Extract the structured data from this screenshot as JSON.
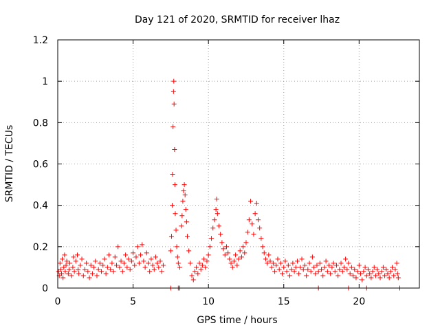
{
  "chart_data": {
    "type": "scatter",
    "title": "Day 121 of 2020, SRMTID for receiver lhaz",
    "xlabel": "GPS time / hours",
    "ylabel": "SRMTID / TECUs",
    "xlim": [
      0,
      24
    ],
    "ylim": [
      0,
      1.2
    ],
    "xticks": [
      0,
      5,
      10,
      15,
      20
    ],
    "xtick_labels": [
      "0",
      "5",
      "10",
      "15",
      "20"
    ],
    "yticks": [
      0,
      0.2,
      0.4,
      0.6,
      0.8,
      1.0,
      1.2
    ],
    "ytick_labels": [
      "0",
      "0.2",
      "0.4",
      "0.6",
      "0.8",
      "1",
      "1.2"
    ],
    "grid": true,
    "marker": "+",
    "color": "#ff0000",
    "series": [
      {
        "name": "SRMTID",
        "points": [
          [
            0.05,
            0.08
          ],
          [
            0.1,
            0.06
          ],
          [
            0.15,
            0.12
          ],
          [
            0.2,
            0.09
          ],
          [
            0.25,
            0.07
          ],
          [
            0.3,
            0.14
          ],
          [
            0.35,
            0.05
          ],
          [
            0.4,
            0.1
          ],
          [
            0.45,
            0.16
          ],
          [
            0.5,
            0.08
          ],
          [
            0.55,
            0.11
          ],
          [
            0.6,
            0.13
          ],
          [
            0.7,
            0.07
          ],
          [
            0.75,
            0.09
          ],
          [
            0.8,
            0.12
          ],
          [
            0.9,
            0.06
          ],
          [
            1.0,
            0.1
          ],
          [
            1.05,
            0.15
          ],
          [
            1.1,
            0.08
          ],
          [
            1.2,
            0.13
          ],
          [
            1.3,
            0.16
          ],
          [
            1.35,
            0.09
          ],
          [
            1.4,
            0.07
          ],
          [
            1.5,
            0.11
          ],
          [
            1.6,
            0.14
          ],
          [
            1.7,
            0.06
          ],
          [
            1.8,
            0.09
          ],
          [
            1.9,
            0.12
          ],
          [
            2.0,
            0.08
          ],
          [
            2.1,
            0.05
          ],
          [
            2.2,
            0.11
          ],
          [
            2.3,
            0.07
          ],
          [
            2.4,
            0.1
          ],
          [
            2.5,
            0.13
          ],
          [
            2.6,
            0.06
          ],
          [
            2.7,
            0.09
          ],
          [
            2.8,
            0.12
          ],
          [
            2.9,
            0.08
          ],
          [
            3.0,
            0.11
          ],
          [
            3.1,
            0.14
          ],
          [
            3.2,
            0.07
          ],
          [
            3.3,
            0.1
          ],
          [
            3.4,
            0.16
          ],
          [
            3.5,
            0.09
          ],
          [
            3.6,
            0.12
          ],
          [
            3.7,
            0.08
          ],
          [
            3.8,
            0.15
          ],
          [
            3.9,
            0.11
          ],
          [
            4.0,
            0.2
          ],
          [
            4.1,
            0.1
          ],
          [
            4.2,
            0.13
          ],
          [
            4.3,
            0.08
          ],
          [
            4.4,
            0.12
          ],
          [
            4.5,
            0.16
          ],
          [
            4.6,
            0.1
          ],
          [
            4.7,
            0.14
          ],
          [
            4.8,
            0.09
          ],
          [
            4.9,
            0.13
          ],
          [
            5.0,
            0.17
          ],
          [
            5.1,
            0.11
          ],
          [
            5.2,
            0.15
          ],
          [
            5.3,
            0.2
          ],
          [
            5.4,
            0.12
          ],
          [
            5.5,
            0.16
          ],
          [
            5.6,
            0.21
          ],
          [
            5.7,
            0.13
          ],
          [
            5.8,
            0.1
          ],
          [
            5.9,
            0.17
          ],
          [
            6.0,
            0.12
          ],
          [
            6.1,
            0.08
          ],
          [
            6.2,
            0.14
          ],
          [
            6.3,
            0.11
          ],
          [
            6.4,
            0.09
          ],
          [
            6.5,
            0.15
          ],
          [
            6.6,
            0.12
          ],
          [
            6.7,
            0.1
          ],
          [
            6.8,
            0.13
          ],
          [
            6.9,
            0.08
          ],
          [
            7.0,
            0.11
          ],
          [
            7.5,
            0.18
          ],
          [
            7.55,
            0.25
          ],
          [
            7.6,
            0.4
          ],
          [
            7.62,
            0.55
          ],
          [
            7.65,
            0.78
          ],
          [
            7.68,
            0.95
          ],
          [
            7.7,
            1.0
          ],
          [
            7.72,
            0.89
          ],
          [
            7.75,
            0.67
          ],
          [
            7.78,
            0.5
          ],
          [
            7.8,
            0.36
          ],
          [
            7.85,
            0.28
          ],
          [
            7.9,
            0.2
          ],
          [
            7.95,
            0.15
          ],
          [
            8.0,
            0.12
          ],
          [
            8.1,
            0.1
          ],
          [
            8.2,
            0.3
          ],
          [
            8.25,
            0.35
          ],
          [
            8.3,
            0.42
          ],
          [
            8.35,
            0.47
          ],
          [
            8.4,
            0.5
          ],
          [
            8.45,
            0.45
          ],
          [
            8.5,
            0.38
          ],
          [
            8.55,
            0.32
          ],
          [
            8.6,
            0.25
          ],
          [
            8.7,
            0.18
          ],
          [
            8.8,
            0.12
          ],
          [
            8.9,
            0.06
          ],
          [
            9.0,
            0.04
          ],
          [
            9.1,
            0.08
          ],
          [
            9.2,
            0.1
          ],
          [
            9.3,
            0.07
          ],
          [
            9.4,
            0.12
          ],
          [
            9.5,
            0.09
          ],
          [
            9.6,
            0.11
          ],
          [
            9.7,
            0.14
          ],
          [
            9.8,
            0.1
          ],
          [
            9.9,
            0.13
          ],
          [
            10.0,
            0.16
          ],
          [
            10.1,
            0.2
          ],
          [
            10.2,
            0.24
          ],
          [
            10.3,
            0.29
          ],
          [
            10.4,
            0.33
          ],
          [
            10.5,
            0.38
          ],
          [
            10.55,
            0.43
          ],
          [
            10.6,
            0.36
          ],
          [
            10.7,
            0.3
          ],
          [
            10.8,
            0.26
          ],
          [
            10.9,
            0.22
          ],
          [
            11.0,
            0.19
          ],
          [
            11.1,
            0.16
          ],
          [
            11.2,
            0.2
          ],
          [
            11.3,
            0.17
          ],
          [
            11.4,
            0.14
          ],
          [
            11.5,
            0.12
          ],
          [
            11.6,
            0.1
          ],
          [
            11.7,
            0.13
          ],
          [
            11.8,
            0.16
          ],
          [
            11.9,
            0.11
          ],
          [
            12.0,
            0.14
          ],
          [
            12.1,
            0.18
          ],
          [
            12.2,
            0.15
          ],
          [
            12.3,
            0.2
          ],
          [
            12.4,
            0.17
          ],
          [
            12.5,
            0.22
          ],
          [
            12.6,
            0.27
          ],
          [
            12.7,
            0.33
          ],
          [
            12.8,
            0.42
          ],
          [
            12.9,
            0.31
          ],
          [
            13.0,
            0.26
          ],
          [
            13.1,
            0.36
          ],
          [
            13.2,
            0.41
          ],
          [
            13.3,
            0.33
          ],
          [
            13.4,
            0.29
          ],
          [
            13.5,
            0.24
          ],
          [
            13.6,
            0.2
          ],
          [
            13.7,
            0.17
          ],
          [
            13.8,
            0.14
          ],
          [
            13.9,
            0.12
          ],
          [
            14.0,
            0.16
          ],
          [
            14.1,
            0.13
          ],
          [
            14.2,
            0.1
          ],
          [
            14.3,
            0.12
          ],
          [
            14.4,
            0.08
          ],
          [
            14.5,
            0.11
          ],
          [
            14.6,
            0.14
          ],
          [
            14.7,
            0.09
          ],
          [
            14.8,
            0.12
          ],
          [
            14.9,
            0.07
          ],
          [
            15.0,
            0.1
          ],
          [
            15.1,
            0.13
          ],
          [
            15.2,
            0.08
          ],
          [
            15.3,
            0.11
          ],
          [
            15.4,
            0.06
          ],
          [
            15.5,
            0.09
          ],
          [
            15.6,
            0.12
          ],
          [
            15.7,
            0.08
          ],
          [
            15.8,
            0.1
          ],
          [
            15.9,
            0.13
          ],
          [
            16.0,
            0.07
          ],
          [
            16.1,
            0.1
          ],
          [
            16.2,
            0.14
          ],
          [
            16.3,
            0.09
          ],
          [
            16.4,
            0.11
          ],
          [
            16.5,
            0.06
          ],
          [
            16.6,
            0.09
          ],
          [
            16.7,
            0.12
          ],
          [
            16.8,
            0.08
          ],
          [
            16.9,
            0.15
          ],
          [
            17.0,
            0.1
          ],
          [
            17.1,
            0.07
          ],
          [
            17.2,
            0.11
          ],
          [
            17.3,
            0.08
          ],
          [
            17.4,
            0.12
          ],
          [
            17.5,
            0.09
          ],
          [
            17.6,
            0.06
          ],
          [
            17.7,
            0.1
          ],
          [
            17.8,
            0.13
          ],
          [
            17.9,
            0.08
          ],
          [
            18.0,
            0.11
          ],
          [
            18.1,
            0.07
          ],
          [
            18.2,
            0.1
          ],
          [
            18.3,
            0.12
          ],
          [
            18.4,
            0.08
          ],
          [
            18.5,
            0.11
          ],
          [
            18.6,
            0.06
          ],
          [
            18.7,
            0.09
          ],
          [
            18.8,
            0.12
          ],
          [
            18.9,
            0.08
          ],
          [
            19.0,
            0.1
          ],
          [
            19.1,
            0.14
          ],
          [
            19.2,
            0.09
          ],
          [
            19.3,
            0.12
          ],
          [
            19.4,
            0.07
          ],
          [
            19.5,
            0.1
          ],
          [
            19.6,
            0.06
          ],
          [
            19.7,
            0.09
          ],
          [
            19.8,
            0.05
          ],
          [
            19.9,
            0.08
          ],
          [
            20.0,
            0.11
          ],
          [
            20.1,
            0.07
          ],
          [
            20.2,
            0.04
          ],
          [
            20.3,
            0.08
          ],
          [
            20.4,
            0.1
          ],
          [
            20.5,
            0.06
          ],
          [
            20.6,
            0.09
          ],
          [
            20.7,
            0.07
          ],
          [
            20.8,
            0.05
          ],
          [
            20.9,
            0.08
          ],
          [
            21.0,
            0.1
          ],
          [
            21.1,
            0.06
          ],
          [
            21.2,
            0.09
          ],
          [
            21.3,
            0.07
          ],
          [
            21.4,
            0.05
          ],
          [
            21.5,
            0.08
          ],
          [
            21.6,
            0.1
          ],
          [
            21.7,
            0.06
          ],
          [
            21.8,
            0.09
          ],
          [
            21.9,
            0.07
          ],
          [
            22.0,
            0.05
          ],
          [
            22.1,
            0.08
          ],
          [
            22.2,
            0.1
          ],
          [
            22.3,
            0.06
          ],
          [
            22.4,
            0.09
          ],
          [
            22.5,
            0.12
          ],
          [
            22.55,
            0.07
          ],
          [
            22.6,
            0.05
          ],
          [
            22.7,
            0.0
          ],
          [
            7.5,
            0.0
          ],
          [
            8.0,
            0.0
          ],
          [
            8.1,
            0.0
          ],
          [
            17.3,
            0.0
          ],
          [
            19.3,
            0.0
          ],
          [
            20.5,
            0.0
          ]
        ]
      }
    ]
  }
}
